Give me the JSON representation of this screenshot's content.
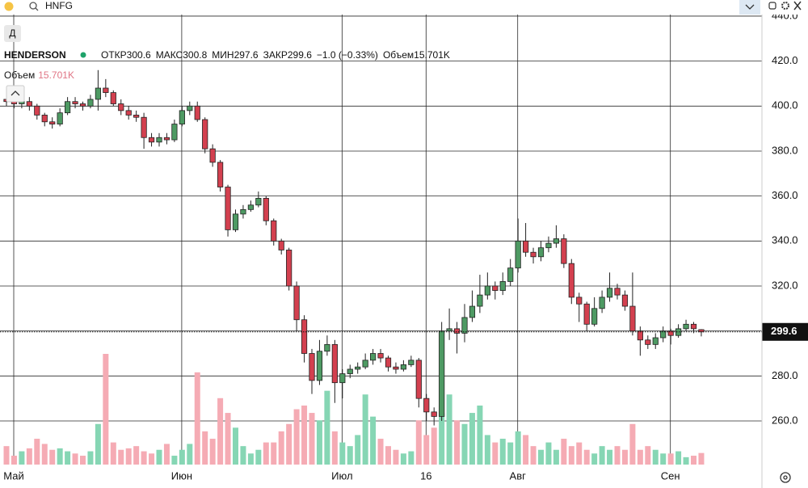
{
  "toolbar": {
    "symbol": "HNFG",
    "period_button": "Д"
  },
  "chart_data": {
    "type": "candlestick",
    "name": "HENDERSON",
    "labels": {
      "open": "ОТКР",
      "high": "МАКС",
      "low": "МИН",
      "close": "ЗАКР",
      "volume": "Объем"
    },
    "change_label": "−1.0 (−0.33%)",
    "up_color": "#4e9a63",
    "down_color": "#d3404f",
    "volume_up_color": "#86d6b4",
    "volume_down_color": "#f5abb4",
    "categories": [
      "Май",
      null,
      null,
      null,
      null,
      null,
      null,
      null,
      null,
      null,
      null,
      null,
      null,
      null,
      null,
      null,
      null,
      null,
      null,
      null,
      null,
      null,
      "Июн",
      null,
      null,
      null,
      null,
      null,
      null,
      null,
      null,
      null,
      null,
      null,
      null,
      null,
      null,
      null,
      null,
      null,
      null,
      null,
      null,
      "Июл",
      null,
      null,
      null,
      null,
      null,
      null,
      null,
      null,
      null,
      null,
      "16",
      null,
      null,
      null,
      null,
      null,
      null,
      null,
      null,
      null,
      null,
      null,
      "Авг",
      null,
      null,
      null,
      null,
      null,
      null,
      null,
      null,
      null,
      null,
      null,
      null,
      null,
      null,
      null,
      null,
      null,
      null,
      null,
      "Сен",
      null,
      null,
      null,
      null,
      null
    ],
    "open": [
      403,
      402,
      401,
      402,
      400,
      396,
      393,
      392,
      397,
      402,
      401,
      400,
      403,
      408,
      406,
      401,
      398,
      396,
      395,
      386,
      384,
      386,
      385,
      392,
      398,
      400,
      394,
      381,
      375,
      364,
      345,
      352,
      354,
      356,
      359,
      349,
      340,
      336,
      320,
      305,
      290,
      278,
      291,
      294,
      277,
      281,
      283,
      284,
      287,
      290,
      288,
      284,
      283,
      285,
      287,
      270,
      264,
      262,
      300,
      301,
      299,
      306,
      311,
      316,
      320,
      318,
      322,
      328,
      340,
      335,
      333,
      337,
      339,
      341,
      330,
      315,
      312,
      303,
      310,
      315,
      319,
      316,
      311,
      300,
      296,
      294,
      297,
      300,
      298,
      301,
      303,
      300.6
    ],
    "high": [
      405,
      404,
      404,
      404,
      401,
      397,
      395,
      399,
      404,
      404,
      402,
      405,
      416,
      412,
      407,
      403,
      400,
      398,
      397,
      388,
      388,
      388,
      394,
      400,
      402,
      402,
      395,
      383,
      376,
      365,
      354,
      356,
      358,
      362,
      360,
      350,
      341,
      337,
      322,
      307,
      292,
      296,
      298,
      296,
      283,
      285,
      286,
      290,
      292,
      292,
      289,
      286,
      287,
      289,
      288,
      272,
      266,
      304,
      310,
      304,
      312,
      318,
      325,
      326,
      322,
      326,
      332,
      350,
      348,
      337,
      340,
      342,
      347,
      343,
      332,
      317,
      313,
      315,
      318,
      326,
      321,
      318,
      326,
      302,
      298,
      299,
      302,
      301,
      303,
      305,
      304,
      300.8
    ],
    "low": [
      400,
      399,
      399,
      398,
      394,
      391,
      390,
      391,
      396,
      399,
      398,
      399,
      398,
      404,
      400,
      396,
      394,
      393,
      381,
      382,
      382,
      383,
      384,
      391,
      396,
      393,
      379,
      373,
      362,
      342,
      344,
      350,
      353,
      355,
      347,
      338,
      334,
      318,
      300,
      286,
      272,
      276,
      289,
      268,
      270,
      279,
      281,
      283,
      285,
      286,
      282,
      281,
      282,
      284,
      266,
      260,
      258,
      260,
      296,
      290,
      295,
      304,
      308,
      314,
      314,
      316,
      320,
      326,
      333,
      330,
      331,
      335,
      337,
      328,
      312,
      304,
      300,
      302,
      308,
      313,
      314,
      309,
      298,
      289,
      292,
      292,
      295,
      294,
      297,
      300,
      299,
      297.6
    ],
    "close": [
      402,
      401,
      402,
      400,
      396,
      393,
      392,
      397,
      402,
      401,
      400,
      403,
      408,
      406,
      401,
      398,
      396,
      395,
      386,
      384,
      386,
      385,
      392,
      398,
      400,
      394,
      381,
      375,
      364,
      345,
      352,
      354,
      356,
      359,
      349,
      340,
      336,
      320,
      305,
      290,
      278,
      291,
      294,
      277,
      281,
      283,
      284,
      287,
      290,
      288,
      284,
      283,
      285,
      287,
      270,
      264,
      262,
      300,
      301,
      299,
      306,
      311,
      316,
      320,
      318,
      322,
      328,
      340,
      335,
      333,
      337,
      339,
      341,
      330,
      315,
      312,
      303,
      310,
      315,
      319,
      316,
      311,
      300,
      296,
      294,
      297,
      300,
      298,
      301,
      303,
      301,
      299.6
    ],
    "volume": {
      "values": [
        25,
        12,
        18,
        22,
        35,
        28,
        20,
        22,
        18,
        15,
        12,
        18,
        55,
        150,
        30,
        20,
        22,
        25,
        18,
        15,
        20,
        28,
        12,
        20,
        28,
        125,
        45,
        35,
        90,
        70,
        50,
        25,
        15,
        20,
        30,
        30,
        45,
        55,
        75,
        80,
        70,
        60,
        100,
        45,
        30,
        25,
        40,
        95,
        65,
        35,
        25,
        20,
        15,
        18,
        60,
        40,
        50,
        70,
        95,
        60,
        55,
        70,
        80,
        40,
        30,
        35,
        30,
        45,
        40,
        25,
        20,
        30,
        20,
        35,
        25,
        30,
        20,
        15,
        25,
        20,
        25,
        20,
        55,
        20,
        25,
        20,
        15,
        15,
        18,
        10,
        12,
        15.701
      ],
      "last_label": "15.701K"
    },
    "ylim": [
      240.6,
      440.7
    ],
    "yticks": [
      {
        "value": 260,
        "label": "260.0"
      },
      {
        "value": 280,
        "label": "280.0"
      },
      {
        "value": 300,
        "label": "300.0"
      },
      {
        "value": 320,
        "label": "320.0"
      },
      {
        "value": 340,
        "label": "340.0"
      },
      {
        "value": 360,
        "label": "360.0"
      },
      {
        "value": 380,
        "label": "380.0"
      },
      {
        "value": 400,
        "label": "400.0"
      },
      {
        "value": 420,
        "label": "420.0"
      },
      {
        "value": 440,
        "label": "440.0"
      }
    ],
    "grid": true
  }
}
